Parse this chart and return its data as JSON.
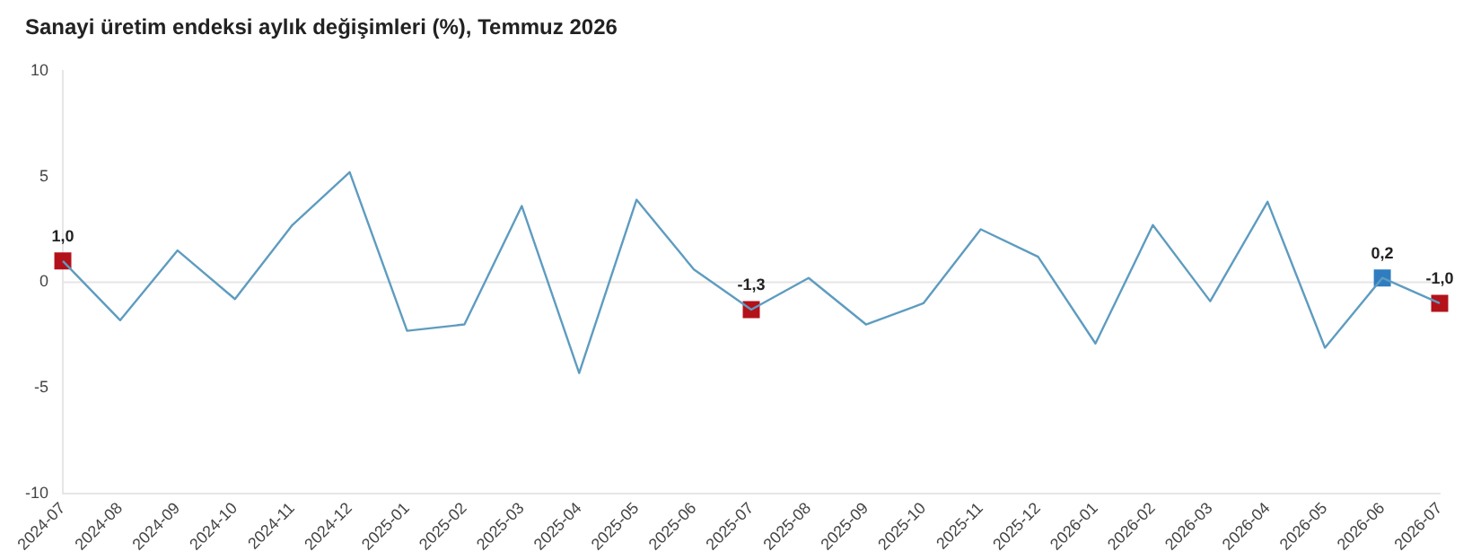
{
  "chart_data": {
    "type": "line",
    "title": "Sanayi üretim endeksi aylık değişimleri (%), Temmuz 2026",
    "categories": [
      "2024-07",
      "2024-08",
      "2024-09",
      "2024-10",
      "2024-11",
      "2024-12",
      "2025-01",
      "2025-02",
      "2025-03",
      "2025-04",
      "2025-05",
      "2025-06",
      "2025-07",
      "2025-08",
      "2025-09",
      "2025-10",
      "2025-11",
      "2025-12",
      "2026-01",
      "2026-02",
      "2026-03",
      "2026-04",
      "2026-05",
      "2026-06",
      "2026-07"
    ],
    "series": [
      {
        "color": "#5e9cc0",
        "marker": "none",
        "values": [
          1.0,
          -1.8,
          1.5,
          -0.8,
          2.7,
          5.2,
          -2.3,
          -2.0,
          3.6,
          -4.3,
          3.9,
          0.6,
          -1.3,
          0.2,
          -2.0,
          -1.0,
          2.5,
          1.2,
          -2.9,
          2.7,
          -0.9,
          3.8,
          -3.1,
          0.2,
          -1.0
        ]
      },
      {
        "type": "scatter",
        "marker": "square",
        "values": [
          1.0,
          null,
          null,
          null,
          null,
          null,
          null,
          null,
          null,
          null,
          null,
          null,
          -1.3,
          null,
          null,
          null,
          null,
          null,
          null,
          null,
          null,
          null,
          null,
          0.2,
          -1.0
        ],
        "colors": [
          "#b3121b",
          null,
          null,
          null,
          null,
          null,
          null,
          null,
          null,
          null,
          null,
          null,
          "#b3121b",
          null,
          null,
          null,
          null,
          null,
          null,
          null,
          null,
          null,
          null,
          "#2f7dc0",
          "#b3121b"
        ],
        "value_labels": [
          "1,0",
          null,
          null,
          null,
          null,
          null,
          null,
          null,
          null,
          null,
          null,
          null,
          "-1,3",
          null,
          null,
          null,
          null,
          null,
          null,
          null,
          null,
          null,
          null,
          "0,2",
          "-1,0"
        ]
      }
    ],
    "grid": false,
    "ylim": [
      -10,
      10
    ],
    "yticks": [
      -10,
      -5,
      0,
      5,
      10
    ],
    "legend": false,
    "line_style": "solid",
    "ref_lines": [
      {
        "axis": "y",
        "value": 0,
        "color": "#e6e6e6"
      }
    ]
  }
}
